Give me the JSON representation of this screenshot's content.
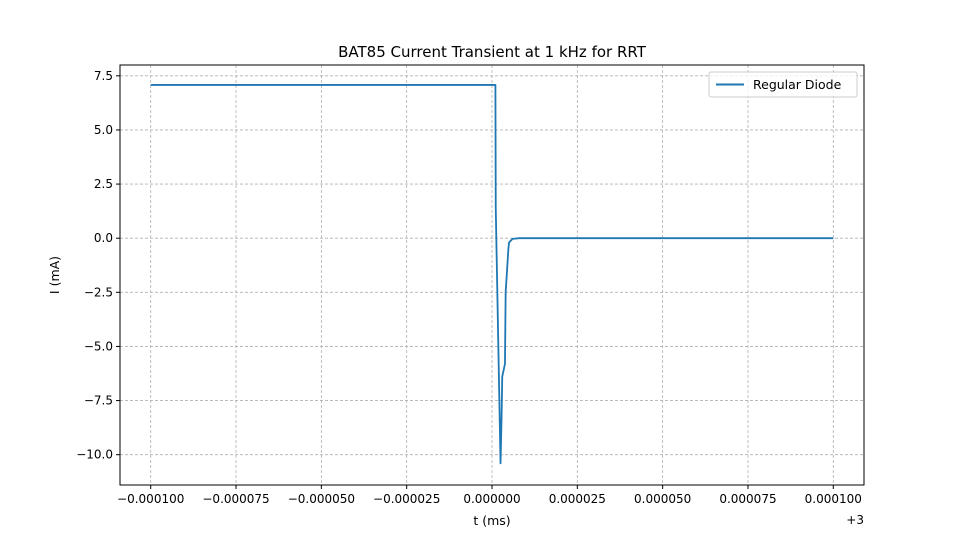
{
  "chart_data": {
    "type": "line",
    "title": "BAT85 Current Transient at 1 kHz for RRT",
    "xlabel": "t (ms)",
    "ylabel": "I (mA)",
    "x_offset_label": "+3",
    "xlim": [
      -0.000109,
      0.000109
    ],
    "ylim": [
      -11.4,
      8.0
    ],
    "x_ticks": [
      -0.0001,
      -7.5e-05,
      -5e-05,
      -2.5e-05,
      0.0,
      2.5e-05,
      5e-05,
      7.5e-05,
      0.0001
    ],
    "x_tick_labels": [
      "−0.000100",
      "−0.000075",
      "−0.000050",
      "−0.000025",
      "0.000000",
      "0.000025",
      "0.000050",
      "0.000075",
      "0.000100"
    ],
    "y_ticks": [
      -10.0,
      -7.5,
      -5.0,
      -2.5,
      0.0,
      2.5,
      5.0,
      7.5
    ],
    "y_tick_labels": [
      "−10.0",
      "−7.5",
      "−5.0",
      "−2.5",
      "0.0",
      "2.5",
      "5.0",
      "7.5"
    ],
    "grid": true,
    "legend": {
      "placement": "top-right"
    },
    "series": [
      {
        "name": "Regular Diode",
        "color": "#1f77b4",
        "x": [
          -0.0001,
          1e-06,
          1.1e-06,
          2.5e-06,
          2.8e-06,
          3e-06,
          3.8e-06,
          4e-06,
          4.8e-06,
          5e-06,
          6e-06,
          8e-06,
          1e-05,
          2e-05,
          5e-05,
          0.0001
        ],
        "y": [
          7.08,
          7.08,
          1.4,
          -10.4,
          -8.3,
          -6.4,
          -5.8,
          -2.5,
          -0.5,
          -0.2,
          -0.03,
          0.0,
          0.0,
          0.0,
          0.0,
          0.0
        ]
      }
    ]
  }
}
